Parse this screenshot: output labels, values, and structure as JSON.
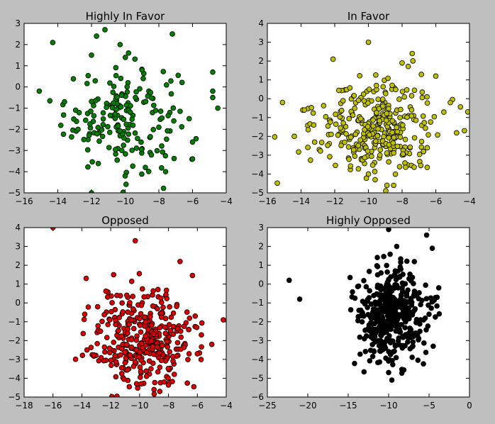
{
  "chart_data": [
    {
      "type": "scatter",
      "title": "Highly In Favor",
      "xlim": [
        -16,
        -4
      ],
      "ylim": [
        -5,
        3
      ],
      "xticks": [
        -16,
        -14,
        -12,
        -10,
        -8,
        -6,
        -4
      ],
      "yticks": [
        -5,
        -4,
        -3,
        -2,
        -1,
        0,
        1,
        2,
        3
      ],
      "color": "#007f00",
      "n_points": 180,
      "cluster": {
        "mean": [
          -10.2,
          -1.4
        ],
        "sd": [
          1.7,
          1.25
        ]
      },
      "points": [
        [
          -15.1,
          -0.2
        ],
        [
          -14.3,
          2.1
        ],
        [
          -12.0,
          -5.0
        ],
        [
          -13.6,
          -0.7
        ],
        [
          -12.8,
          -2.0
        ],
        [
          -11.7,
          2.4
        ],
        [
          -11.2,
          2.7
        ],
        [
          -10.3,
          2.0
        ],
        [
          -9.8,
          1.6
        ],
        [
          -7.2,
          2.5
        ],
        [
          -4.8,
          0.7
        ],
        [
          -4.8,
          -0.2
        ],
        [
          -4.8,
          -0.5
        ],
        [
          -4.5,
          -1.0
        ],
        [
          -6.2,
          -1.5
        ],
        [
          -6.0,
          -2.6
        ],
        [
          -6.0,
          -3.4
        ],
        [
          -8.8,
          -3.8
        ],
        [
          -10.0,
          -4.2
        ],
        [
          -7.6,
          -4.0
        ],
        [
          -12.0,
          1.5
        ],
        [
          -9.0,
          0.8
        ],
        [
          -10.2,
          -3.0
        ],
        [
          -8.0,
          -1.9
        ]
      ]
    },
    {
      "type": "scatter",
      "title": "In Favor",
      "xlim": [
        -16,
        -4
      ],
      "ylim": [
        -5,
        4
      ],
      "xticks": [
        -16,
        -14,
        -12,
        -10,
        -8,
        -6,
        -4
      ],
      "yticks": [
        -5,
        -4,
        -3,
        -2,
        -1,
        0,
        1,
        2,
        3,
        4
      ],
      "color": "#bfbf00",
      "n_points": 320,
      "cluster": {
        "mean": [
          -9.6,
          -1.5
        ],
        "sd": [
          1.8,
          1.3
        ]
      },
      "points": [
        [
          -15.1,
          -0.2
        ],
        [
          -14.4,
          -2.0
        ],
        [
          -13.9,
          -0.6
        ],
        [
          -10.0,
          3.0
        ],
        [
          -7.4,
          2.4
        ],
        [
          -8.0,
          1.9
        ],
        [
          -12.1,
          2.1
        ],
        [
          -6.0,
          1.2
        ],
        [
          -4.1,
          -0.7
        ],
        [
          -4.3,
          -1.7
        ],
        [
          -8.9,
          -4.6
        ],
        [
          -8.5,
          -4.6
        ],
        [
          -9.6,
          -4.3
        ],
        [
          -10.0,
          -4.0
        ],
        [
          -13.8,
          -0.6
        ]
      ]
    },
    {
      "type": "scatter",
      "title": "Opposed",
      "xlim": [
        -18,
        -4
      ],
      "ylim": [
        -5,
        4
      ],
      "xticks": [
        -18,
        -16,
        -14,
        -12,
        -10,
        -8,
        -6,
        -4
      ],
      "yticks": [
        -5,
        -4,
        -3,
        -2,
        -1,
        0,
        1,
        2,
        3,
        4
      ],
      "color": "#dd0000",
      "n_points": 360,
      "cluster": {
        "mean": [
          -9.7,
          -2.0
        ],
        "sd": [
          1.8,
          1.35
        ]
      },
      "points": [
        [
          -16.0,
          4.0
        ],
        [
          -10.3,
          3.3
        ],
        [
          -13.8,
          -0.6
        ],
        [
          -13.7,
          1.3
        ],
        [
          -7.2,
          2.2
        ],
        [
          -4.2,
          -0.9
        ],
        [
          -9.0,
          -4.6
        ],
        [
          -8.6,
          -4.7
        ],
        [
          -9.9,
          -4.3
        ],
        [
          -6.0,
          -2.7
        ],
        [
          -11.8,
          1.5
        ],
        [
          -5.0,
          -2.2
        ]
      ]
    },
    {
      "type": "scatter",
      "title": "Highly Opposed",
      "xlim": [
        -25,
        0
      ],
      "ylim": [
        -6,
        3
      ],
      "xticks": [
        -25,
        -20,
        -15,
        -10,
        -5,
        0
      ],
      "yticks": [
        -6,
        -5,
        -4,
        -3,
        -2,
        -1,
        0,
        1,
        2,
        3
      ],
      "color": "#000000",
      "n_points": 420,
      "cluster": {
        "mean": [
          -9.6,
          -1.7
        ],
        "sd": [
          2.1,
          1.3
        ]
      },
      "points": [
        [
          -22.3,
          0.2
        ],
        [
          -21.0,
          -0.8
        ],
        [
          -10.0,
          2.9
        ],
        [
          -9.0,
          2.0
        ],
        [
          -5.3,
          2.6
        ],
        [
          -4.6,
          1.9
        ],
        [
          -5.0,
          -1.6
        ],
        [
          -9.6,
          -5.1
        ],
        [
          -10.0,
          -4.7
        ],
        [
          -13.0,
          -2.9
        ],
        [
          -3.8,
          -0.2
        ],
        [
          -4.0,
          -0.7
        ]
      ]
    }
  ]
}
